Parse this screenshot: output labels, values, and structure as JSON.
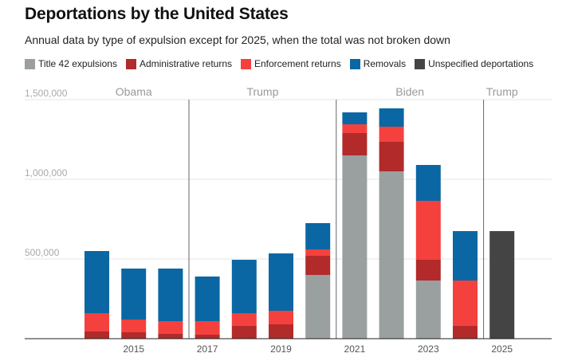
{
  "chart_data": {
    "type": "bar",
    "stacked": true,
    "title": "Deportations by the United States",
    "subtitle": "Annual data by type of expulsion except for 2025, when the total was not broken down",
    "categories": [
      "2014",
      "2015",
      "2016",
      "2017",
      "2018",
      "2019",
      "2020",
      "2021",
      "2022",
      "2023",
      "2024",
      "2025"
    ],
    "x_tick_labels": [
      "2015",
      "2017",
      "2019",
      "2021",
      "2023",
      "2025"
    ],
    "x_tick_years": [
      2015,
      2017,
      2019,
      2021,
      2023,
      2025
    ],
    "ylim": [
      0,
      1500000
    ],
    "y_ticks": [
      {
        "value": 500000,
        "label": "500,000"
      },
      {
        "value": 1000000,
        "label": "1,000,000"
      },
      {
        "value": 1500000,
        "label": "1,500,000"
      }
    ],
    "series": [
      {
        "name": "Title 42 expulsions",
        "color": "#9aa0a0",
        "values": [
          0,
          0,
          0,
          0,
          0,
          0,
          400000,
          1150000,
          1050000,
          365000,
          0,
          0
        ]
      },
      {
        "name": "Administrative returns",
        "color": "#b22a2a",
        "values": [
          45000,
          40000,
          30000,
          25000,
          80000,
          90000,
          120000,
          140000,
          185000,
          130000,
          80000,
          0
        ]
      },
      {
        "name": "Enforcement returns",
        "color": "#f5413e",
        "values": [
          115000,
          80000,
          80000,
          85000,
          80000,
          85000,
          40000,
          55000,
          95000,
          370000,
          285000,
          0
        ]
      },
      {
        "name": "Removals",
        "color": "#0a67a3",
        "values": [
          390000,
          320000,
          330000,
          280000,
          335000,
          360000,
          165000,
          75000,
          115000,
          225000,
          310000,
          0
        ]
      },
      {
        "name": "Unspecified deportations",
        "color": "#444444",
        "values": [
          0,
          0,
          0,
          0,
          0,
          0,
          0,
          0,
          0,
          0,
          0,
          675000
        ]
      }
    ],
    "eras": [
      {
        "name": "Obama",
        "from": 2014,
        "to": 2016
      },
      {
        "name": "Trump",
        "from": 2017,
        "to": 2020
      },
      {
        "name": "Biden",
        "from": 2021,
        "to": 2024
      },
      {
        "name": "Trump",
        "from": 2025,
        "to": 2025
      }
    ]
  }
}
